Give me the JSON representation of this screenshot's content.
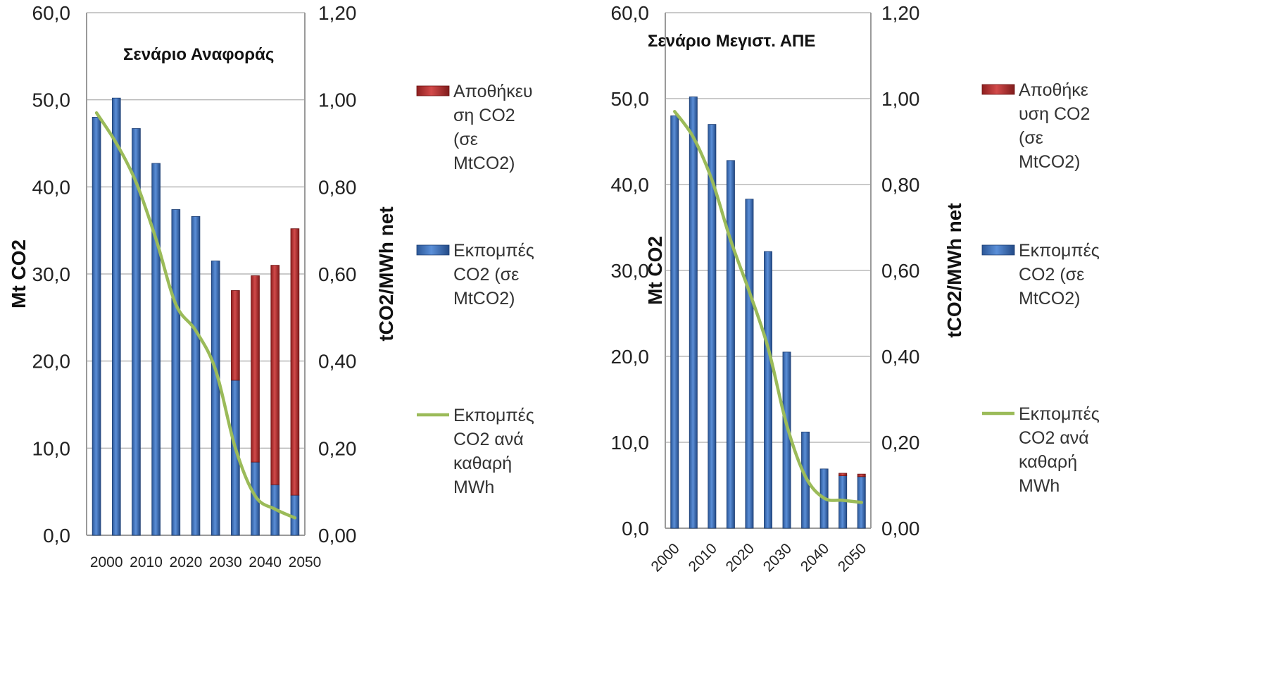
{
  "chart_data": [
    {
      "type": "bar",
      "title": "Σενάριο Αναφοράς",
      "ylabel": "Mt CO2",
      "y2label": "tCO2/MWh net",
      "ylim": [
        0,
        60
      ],
      "y2lim": [
        0,
        1.2
      ],
      "yticks": [
        "0,0",
        "10,0",
        "20,0",
        "30,0",
        "40,0",
        "50,0",
        "60,0"
      ],
      "y2ticks": [
        "0,00",
        "0,20",
        "0,40",
        "0,60",
        "0,80",
        "1,00",
        "1,20"
      ],
      "x": [
        2000,
        2005,
        2010,
        2015,
        2020,
        2025,
        2030,
        2035,
        2040,
        2045,
        2050
      ],
      "xticks": [
        "2000",
        "2010",
        "2020",
        "2030",
        "2040",
        "2050"
      ],
      "xtick_rotated": false,
      "series": [
        {
          "name": "Εκπομπές CO2 (σε MtCO2)",
          "kind": "bar",
          "color": "#3a6cb8",
          "values": [
            48.0,
            50.2,
            46.7,
            42.7,
            37.4,
            36.6,
            31.5,
            17.8,
            8.4,
            5.8,
            4.6
          ]
        },
        {
          "name": "Αποθήκευση CO2 (σε MtCO2)",
          "kind": "bar",
          "stacked": true,
          "color": "#b83232",
          "values": [
            0,
            0,
            0,
            0,
            0,
            0,
            0,
            10.3,
            21.4,
            25.2,
            30.6
          ]
        },
        {
          "name": "Εκπομπές CO2 ανά καθαρή MWh",
          "kind": "line",
          "axis": "right",
          "color": "#9bbb59",
          "values": [
            0.97,
            0.9,
            0.81,
            0.68,
            0.53,
            0.47,
            0.38,
            0.2,
            0.09,
            0.06,
            0.04
          ]
        }
      ],
      "legend": [
        {
          "label": "Αποθήκευση CO2 (σε MtCO2)",
          "lines": [
            "Αποθήκευ",
            "ση CO2",
            "(σε",
            "MtCO2)"
          ],
          "kind": "bar",
          "color": "#b83232"
        },
        {
          "label": "Εκπομπές CO2 (σε MtCO2)",
          "lines": [
            "Εκπομπές",
            "CO2 (σε",
            "MtCO2)"
          ],
          "kind": "bar",
          "color": "#3a6cb8"
        },
        {
          "label": "Εκπομπές CO2 ανά καθαρή MWh",
          "lines": [
            "Εκπομπές",
            "CO2 ανά",
            "καθαρή",
            "MWh"
          ],
          "kind": "line",
          "color": "#9bbb59"
        }
      ]
    },
    {
      "type": "bar",
      "title": "Σενάριο Μεγιστ. ΑΠΕ",
      "ylabel": "Mt CO2",
      "y2label": "tCO2/MWh net",
      "ylim": [
        0,
        60
      ],
      "y2lim": [
        0,
        1.2
      ],
      "yticks": [
        "0,0",
        "10,0",
        "20,0",
        "30,0",
        "40,0",
        "50,0",
        "60,0"
      ],
      "y2ticks": [
        "0,00",
        "0,20",
        "0,40",
        "0,60",
        "0,80",
        "1,00",
        "1,20"
      ],
      "x": [
        2000,
        2005,
        2010,
        2015,
        2020,
        2025,
        2030,
        2035,
        2040,
        2045,
        2050
      ],
      "xticks": [
        "2000",
        "2010",
        "2020",
        "2030",
        "2040",
        "2050"
      ],
      "xtick_rotated": true,
      "series": [
        {
          "name": "Εκπομπές CO2 (σε MtCO2)",
          "kind": "bar",
          "color": "#3a6cb8",
          "values": [
            48.0,
            50.2,
            47.0,
            42.8,
            38.3,
            32.2,
            20.5,
            11.2,
            6.9,
            6.1,
            6.0
          ]
        },
        {
          "name": "Αποθήκευση CO2 (σε MtCO2)",
          "kind": "bar",
          "stacked": true,
          "color": "#b83232",
          "values": [
            0,
            0,
            0,
            0,
            0,
            0,
            0,
            0,
            0,
            0.3,
            0.3
          ]
        },
        {
          "name": "Εκπομπές CO2 ανά καθαρή MWh",
          "kind": "line",
          "axis": "right",
          "color": "#9bbb59",
          "values": [
            0.97,
            0.91,
            0.81,
            0.67,
            0.55,
            0.42,
            0.24,
            0.12,
            0.07,
            0.065,
            0.06
          ]
        }
      ],
      "legend": [
        {
          "label": "Αποθήκευση CO2 (σε MtCO2)",
          "lines": [
            "Αποθήκε",
            "υση CO2",
            "(σε",
            "MtCO2)"
          ],
          "kind": "bar",
          "color": "#b83232"
        },
        {
          "label": "Εκπομπές CO2 (σε MtCO2)",
          "lines": [
            "Εκπομπές",
            "CO2 (σε",
            "MtCO2)"
          ],
          "kind": "bar",
          "color": "#3a6cb8"
        },
        {
          "label": "Εκπομπές CO2 ανά καθαρή MWh",
          "lines": [
            "Εκπομπές",
            "CO2 ανά",
            "καθαρή",
            "MWh"
          ],
          "kind": "line",
          "color": "#9bbb59"
        }
      ]
    }
  ]
}
